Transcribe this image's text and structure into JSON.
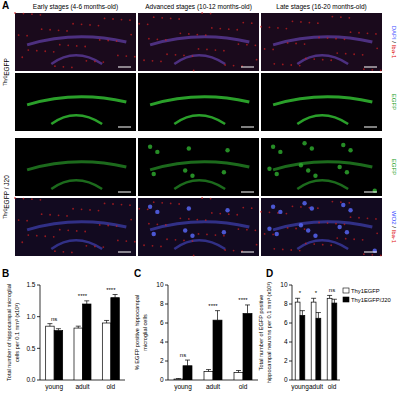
{
  "panel_a": {
    "label": "A",
    "headers": [
      "Early stages (4-6 months-old)",
      "Advanced stages (10-12 months-old)",
      "Late stages (16-20 months-old)"
    ],
    "left_labels": [
      [
        {
          "text": "Thy1",
          "sup": true
        },
        {
          "text": "EGFP"
        }
      ],
      [
        {
          "text": "Thy1",
          "sup": true
        },
        {
          "text": "EGFP / J20"
        }
      ]
    ],
    "right_labels": [
      [
        {
          "text": "DAPI",
          "color": "#3a4cff"
        },
        {
          "text": " / "
        },
        {
          "text": "Iba-1",
          "color": "#e01010"
        }
      ],
      [
        {
          "text": "EGFP",
          "color": "#1aa01a"
        }
      ],
      [
        {
          "text": "EGFP",
          "color": "#1aa01a"
        }
      ],
      [
        {
          "text": "WO2",
          "color": "#3a4cff"
        },
        {
          "text": " / "
        },
        {
          "text": "Iba-1",
          "color": "#e01010"
        }
      ]
    ]
  },
  "chart_data": [
    {
      "type": "bar",
      "panel": "B",
      "ylabel": [
        "Total number of hippocampal microglial",
        "cells per 0.1 mm³ (x10³)"
      ],
      "categories": [
        "young",
        "adult",
        "old"
      ],
      "significance": [
        "ns",
        "****",
        "****"
      ],
      "series": [
        {
          "name": "Thy1EGFP",
          "color": "#ffffff",
          "values": [
            0.85,
            0.82,
            0.9
          ],
          "errors": [
            0.04,
            0.03,
            0.04
          ]
        },
        {
          "name": "Thy1EGFP/J20",
          "color": "#000000",
          "values": [
            0.78,
            1.2,
            1.3
          ],
          "errors": [
            0.03,
            0.05,
            0.05
          ]
        }
      ],
      "ylim": [
        0,
        1.5
      ],
      "yticks": [
        {
          "value": 0,
          "label": "0.0"
        },
        {
          "value": 0.5,
          "label": "0.5"
        },
        {
          "value": 1,
          "label": "1.0"
        },
        {
          "value": 1.5,
          "label": "1.5"
        }
      ]
    },
    {
      "type": "bar",
      "panel": "C",
      "ylabel": [
        "% EGFP positive hippocampal",
        "microglial cells"
      ],
      "categories": [
        "young",
        "adult",
        "old"
      ],
      "significance": [
        "ns",
        "****",
        "****"
      ],
      "series": [
        {
          "name": "Thy1EGFP",
          "color": "#ffffff",
          "values": [
            0.1,
            0.9,
            0.8
          ],
          "errors": [
            0.05,
            0.2,
            0.2
          ]
        },
        {
          "name": "Thy1EGFP/J20",
          "color": "#000000",
          "values": [
            1.5,
            6.3,
            7.0
          ],
          "errors": [
            0.6,
            1.0,
            0.9
          ]
        }
      ],
      "ylim": [
        0,
        10
      ],
      "yticks": [
        0,
        2,
        4,
        6,
        8,
        10
      ]
    },
    {
      "type": "bar",
      "panel": "D",
      "ylabel": [
        "Total number of EGFP positive",
        "hippocampal neurons per 0.1 mm³ (x10³)"
      ],
      "categories": [
        "young",
        "adult",
        "old"
      ],
      "significance": [
        "*",
        "*",
        "ns"
      ],
      "series": [
        {
          "name": "Thy1EGFP",
          "color": "#ffffff",
          "values": [
            8.2,
            8.2,
            8.6
          ],
          "errors": [
            0.4,
            0.4,
            0.3
          ]
        },
        {
          "name": "Thy1EGFP/J20",
          "color": "#000000",
          "values": [
            6.8,
            6.5,
            8.1
          ],
          "errors": [
            0.5,
            0.6,
            0.4
          ]
        }
      ],
      "ylim": [
        0,
        10
      ],
      "yticks": [
        0,
        2,
        4,
        6,
        8,
        10
      ],
      "legend": "right"
    }
  ]
}
